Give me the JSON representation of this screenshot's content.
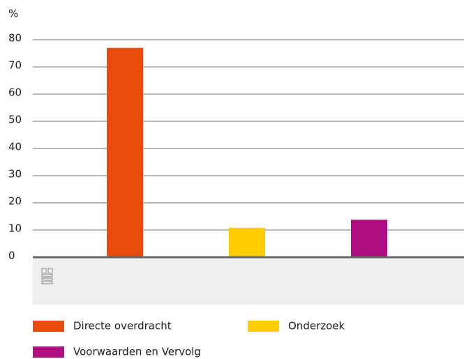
{
  "chart_data": {
    "type": "bar",
    "y_unit": "%",
    "categories": [
      null
    ],
    "series": [
      {
        "name": "Directe overdracht",
        "color": "#e94c0a",
        "values": [
          77
        ]
      },
      {
        "name": "Onderzoek",
        "color": "#ffcc00",
        "values": [
          10.8
        ]
      },
      {
        "name": "Voorwaarden en Vervolg",
        "color": "#af0e80",
        "values": [
          13.8
        ]
      }
    ],
    "ylim": [
      0,
      80
    ],
    "yticks": [
      0,
      10,
      20,
      30,
      40,
      50,
      60,
      70,
      80
    ],
    "grid": true
  }
}
